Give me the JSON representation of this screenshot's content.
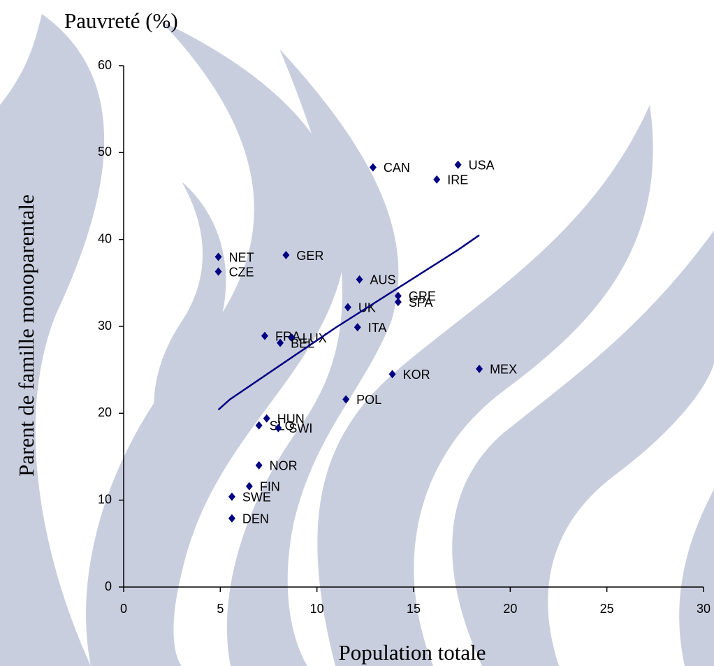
{
  "chart_data": {
    "type": "scatter",
    "title": "Pauvreté (%)",
    "y_label": "Parent de famille monoparentale",
    "x_label": "Population totale",
    "xlim": [
      0,
      30
    ],
    "ylim": [
      0,
      60
    ],
    "xticks": [
      0,
      5,
      10,
      15,
      20,
      25,
      30
    ],
    "yticks": [
      0,
      10,
      20,
      30,
      40,
      50,
      60
    ],
    "series": [
      {
        "type": "scatter",
        "color": "#000080",
        "labels": [
          "CAN",
          "USA",
          "IRE",
          "NET",
          "CZE",
          "GER",
          "AUS",
          "GRE",
          "SPA",
          "UK",
          "ITA",
          "FRA",
          "LUX",
          "BEL",
          "KOR",
          "MEX",
          "POL",
          "HUN",
          "SLO",
          "SWI",
          "NOR",
          "FIN",
          "SWE",
          "DEN"
        ],
        "x": [
          12.9,
          17.3,
          16.2,
          4.9,
          4.9,
          8.4,
          12.2,
          14.2,
          14.2,
          11.6,
          12.1,
          7.3,
          8.7,
          8.1,
          13.9,
          18.4,
          11.5,
          7.4,
          7.0,
          8.0,
          7.0,
          6.5,
          5.6,
          5.6
        ],
        "values": [
          48.3,
          48.6,
          46.9,
          38.0,
          36.3,
          38.2,
          35.4,
          33.5,
          32.8,
          32.2,
          29.9,
          28.9,
          28.7,
          28.1,
          24.5,
          25.1,
          21.6,
          19.4,
          18.6,
          18.3,
          14.0,
          11.6,
          10.4,
          7.9
        ]
      },
      {
        "type": "line",
        "color": "#000080",
        "x": [
          4.9,
          5.5,
          11.0,
          17.3,
          18.4
        ],
        "values": [
          20.4,
          21.6,
          29.9,
          38.8,
          40.5
        ]
      }
    ]
  }
}
